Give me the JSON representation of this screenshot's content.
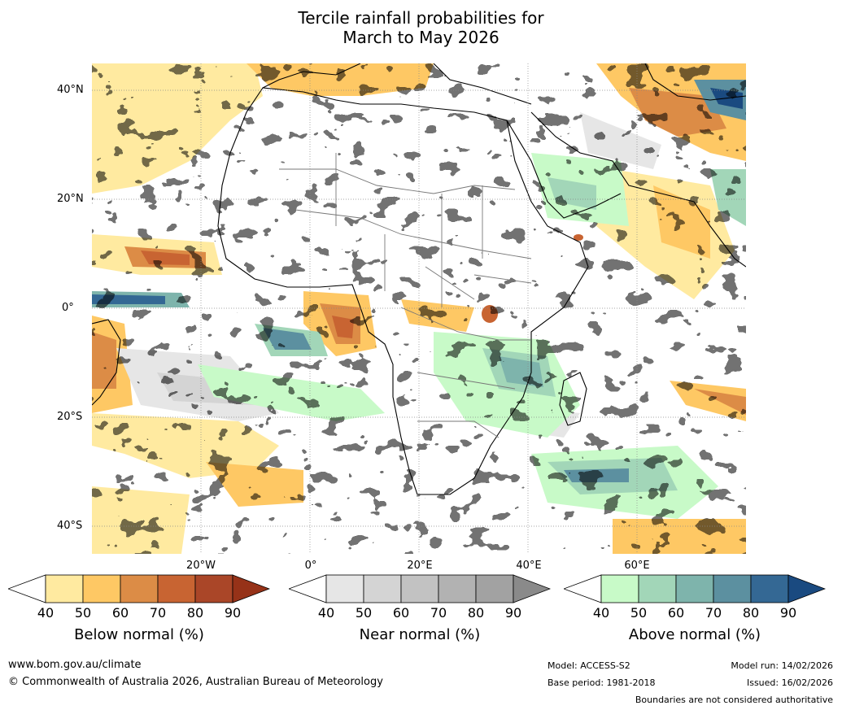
{
  "title": {
    "line1": "Tercile rainfall probabilities for",
    "line2": "March to May 2026"
  },
  "map": {
    "region": "Africa",
    "latitude_labels": [
      "40°N",
      "20°N",
      "0°",
      "20°S",
      "40°S"
    ],
    "longitude_labels": [
      "20°W",
      "0°",
      "20°E",
      "40°E",
      "60°E"
    ]
  },
  "legends": [
    {
      "caption": "Below normal (%)",
      "ticks": [
        "40",
        "50",
        "60",
        "70",
        "80",
        "90"
      ],
      "colors": [
        "#ffffff",
        "#ffeaa0",
        "#fec864",
        "#dc8c46",
        "#c86432",
        "#aa4628",
        "#963218"
      ]
    },
    {
      "caption": "Near normal (%)",
      "ticks": [
        "40",
        "50",
        "60",
        "70",
        "80",
        "90"
      ],
      "colors": [
        "#ffffff",
        "#e6e6e6",
        "#d4d4d4",
        "#c2c2c2",
        "#b2b2b2",
        "#a2a2a2",
        "#8a8a8a"
      ]
    },
    {
      "caption": "Above normal (%)",
      "ticks": [
        "40",
        "50",
        "60",
        "70",
        "80",
        "90"
      ],
      "colors": [
        "#ffffff",
        "#c8fac8",
        "#a2d6b8",
        "#7eb4ac",
        "#5c90a0",
        "#346894",
        "#1a4a80"
      ]
    }
  ],
  "footer": {
    "website": "www.bom.gov.au/climate",
    "copyright": "© Commonwealth of Australia 2026, Australian Bureau of Meteorology",
    "model": "Model: ACCESS-S2",
    "base_period": "Base period: 1981-2018",
    "model_run": "Model run: 14/02/2026",
    "issued": "Issued: 16/02/2026",
    "disclaimer": "Boundaries are not considered authoritative"
  }
}
